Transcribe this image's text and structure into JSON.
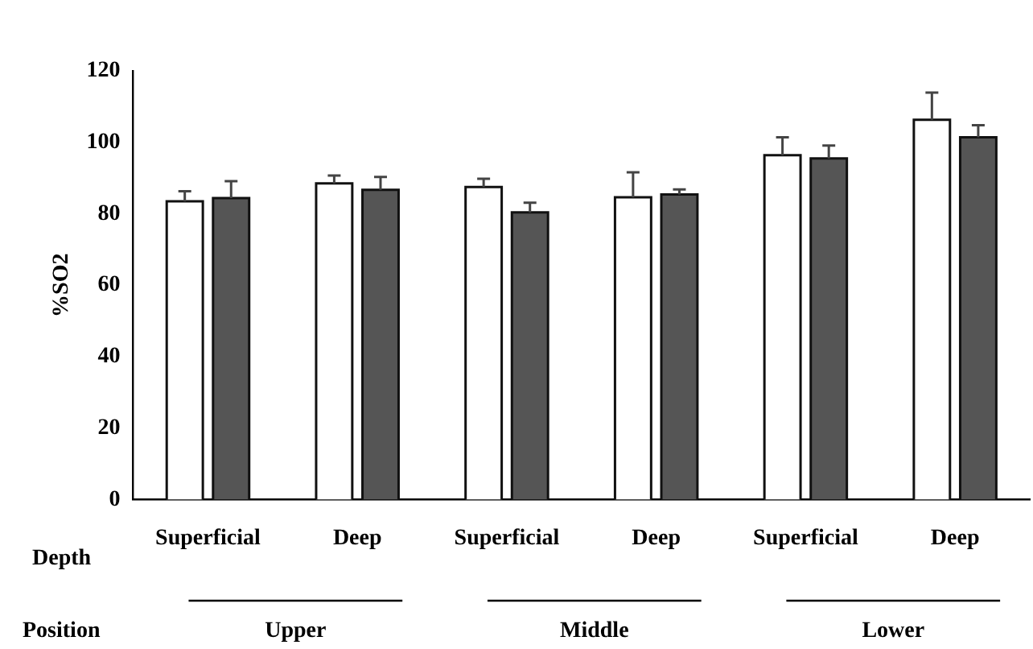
{
  "chart_data": {
    "type": "bar",
    "ylabel": "%SO2",
    "categories": [
      "Superficial",
      "Deep",
      "Superficial",
      "Deep",
      "Superficial",
      "Deep"
    ],
    "series": [
      {
        "color": "#ffffff",
        "values": [
          83.5,
          88.5,
          87.5,
          84.6,
          96.4,
          106.3
        ],
        "errors": [
          [
            83.5,
            86.3
          ],
          [
            88.5,
            90.7
          ],
          [
            87.5,
            89.8
          ],
          [
            84.6,
            91.6
          ],
          [
            96.4,
            101.4
          ],
          [
            106.3,
            113.9
          ]
        ]
      },
      {
        "color": "#555555",
        "values": [
          84.4,
          86.7,
          80.4,
          85.4,
          95.5,
          101.4
        ],
        "errors": [
          [
            84.4,
            89.1
          ],
          [
            86.7,
            90.3
          ],
          [
            80.4,
            83.1
          ],
          [
            85.4,
            86.8
          ],
          [
            95.5,
            99.1
          ],
          [
            101.4,
            104.8
          ]
        ]
      }
    ],
    "ylim": [
      0,
      120
    ],
    "yticks": [
      0,
      20,
      40,
      60,
      80,
      100,
      120
    ],
    "grid": false,
    "legend": false,
    "annotations": [
      "Depth",
      "Position",
      "Upper",
      "Middle",
      "Lower"
    ]
  }
}
